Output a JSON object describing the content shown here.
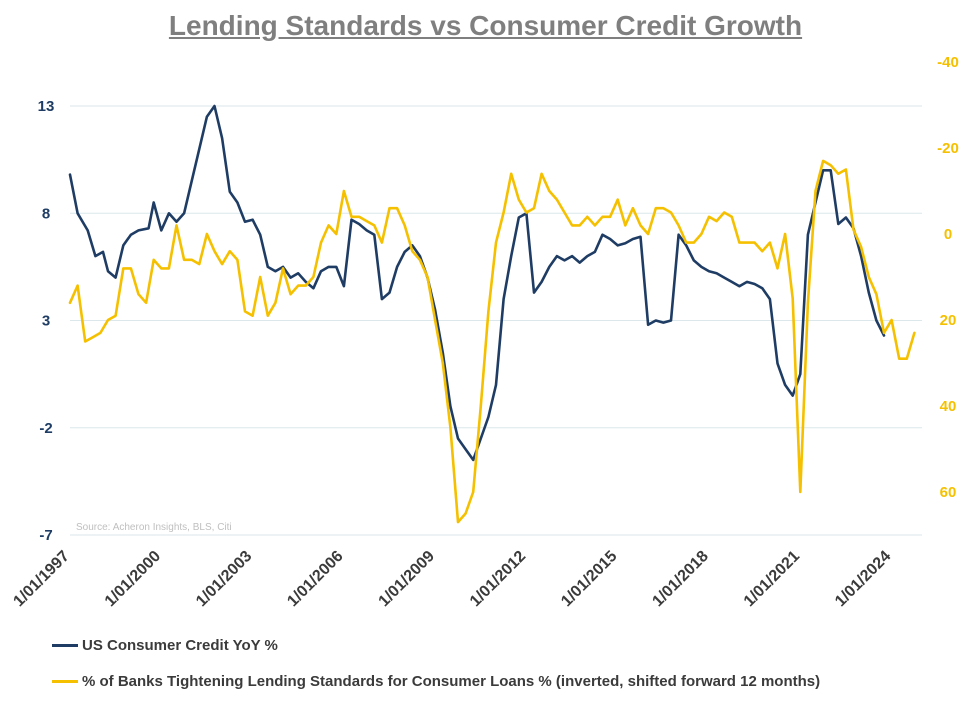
{
  "chart_data": {
    "type": "line",
    "title": "Lending Standards vs Consumer Credit Growth",
    "source": "Source: Acheron Insights, BLS, Citi",
    "grid": true,
    "legend_position": "bottom-left",
    "x_ticks": [
      "1/01/1997",
      "1/01/2000",
      "1/01/2003",
      "1/01/2006",
      "1/01/2009",
      "1/01/2012",
      "1/01/2015",
      "1/01/2018",
      "1/01/2021",
      "1/01/2024"
    ],
    "y_left": {
      "range": [
        -7,
        13
      ],
      "ticks": [
        "13",
        "8",
        "3",
        "-2",
        "-7"
      ],
      "tick_values": [
        13,
        8,
        3,
        -2,
        -7
      ]
    },
    "y_right": {
      "range": [
        -40,
        70
      ],
      "inverted": true,
      "ticks": [
        "-40",
        "-20",
        "0",
        "20",
        "40",
        "60"
      ],
      "tick_values": [
        -40,
        -20,
        0,
        20,
        40,
        60
      ]
    },
    "series": [
      {
        "name": "US Consumer Credit YoY %",
        "axis": "left",
        "color": "#1f3d64",
        "points": [
          [
            "1997-01",
            9.8
          ],
          [
            "1997-04",
            8.0
          ],
          [
            "1997-08",
            7.2
          ],
          [
            "1997-11",
            6.0
          ],
          [
            "1998-02",
            6.2
          ],
          [
            "1998-04",
            5.3
          ],
          [
            "1998-07",
            5.0
          ],
          [
            "1998-10",
            6.5
          ],
          [
            "1999-01",
            7.0
          ],
          [
            "1999-04",
            7.2
          ],
          [
            "1999-08",
            7.3
          ],
          [
            "1999-10",
            8.5
          ],
          [
            "2000-01",
            7.2
          ],
          [
            "2000-04",
            8.0
          ],
          [
            "2000-07",
            7.6
          ],
          [
            "2000-10",
            8.0
          ],
          [
            "2001-01",
            9.5
          ],
          [
            "2001-04",
            11.0
          ],
          [
            "2001-07",
            12.5
          ],
          [
            "2001-10",
            13.0
          ],
          [
            "2002-01",
            11.5
          ],
          [
            "2002-04",
            9.0
          ],
          [
            "2002-07",
            8.5
          ],
          [
            "2002-10",
            7.6
          ],
          [
            "2003-01",
            7.7
          ],
          [
            "2003-04",
            7.0
          ],
          [
            "2003-07",
            5.5
          ],
          [
            "2003-10",
            5.3
          ],
          [
            "2004-01",
            5.5
          ],
          [
            "2004-04",
            5.0
          ],
          [
            "2004-07",
            5.2
          ],
          [
            "2004-10",
            4.8
          ],
          [
            "2005-01",
            4.5
          ],
          [
            "2005-04",
            5.3
          ],
          [
            "2005-07",
            5.5
          ],
          [
            "2005-10",
            5.5
          ],
          [
            "2006-01",
            4.6
          ],
          [
            "2006-04",
            7.7
          ],
          [
            "2006-07",
            7.5
          ],
          [
            "2006-10",
            7.2
          ],
          [
            "2007-01",
            7.0
          ],
          [
            "2007-04",
            4.0
          ],
          [
            "2007-07",
            4.3
          ],
          [
            "2007-10",
            5.5
          ],
          [
            "2008-01",
            6.2
          ],
          [
            "2008-04",
            6.5
          ],
          [
            "2008-07",
            6.0
          ],
          [
            "2008-10",
            5.0
          ],
          [
            "2009-01",
            3.5
          ],
          [
            "2009-04",
            1.5
          ],
          [
            "2009-07",
            -1.0
          ],
          [
            "2009-10",
            -2.5
          ],
          [
            "2010-01",
            -3.0
          ],
          [
            "2010-04",
            -3.5
          ],
          [
            "2010-07",
            -2.5
          ],
          [
            "2010-10",
            -1.5
          ],
          [
            "2011-01",
            0.0
          ],
          [
            "2011-04",
            4.0
          ],
          [
            "2011-07",
            6.0
          ],
          [
            "2011-10",
            7.8
          ],
          [
            "2012-01",
            8.0
          ],
          [
            "2012-04",
            4.3
          ],
          [
            "2012-07",
            4.8
          ],
          [
            "2012-10",
            5.5
          ],
          [
            "2013-01",
            6.0
          ],
          [
            "2013-04",
            5.8
          ],
          [
            "2013-07",
            6.0
          ],
          [
            "2013-10",
            5.7
          ],
          [
            "2014-01",
            6.0
          ],
          [
            "2014-04",
            6.2
          ],
          [
            "2014-07",
            7.0
          ],
          [
            "2014-10",
            6.8
          ],
          [
            "2015-01",
            6.5
          ],
          [
            "2015-04",
            6.6
          ],
          [
            "2015-07",
            6.8
          ],
          [
            "2015-10",
            6.9
          ],
          [
            "2016-01",
            2.8
          ],
          [
            "2016-04",
            3.0
          ],
          [
            "2016-07",
            2.9
          ],
          [
            "2016-10",
            3.0
          ],
          [
            "2017-01",
            7.0
          ],
          [
            "2017-04",
            6.5
          ],
          [
            "2017-07",
            5.8
          ],
          [
            "2017-10",
            5.5
          ],
          [
            "2018-01",
            5.3
          ],
          [
            "2018-04",
            5.2
          ],
          [
            "2018-07",
            5.0
          ],
          [
            "2018-10",
            4.8
          ],
          [
            "2019-01",
            4.6
          ],
          [
            "2019-04",
            4.8
          ],
          [
            "2019-07",
            4.7
          ],
          [
            "2019-10",
            4.5
          ],
          [
            "2020-01",
            4.0
          ],
          [
            "2020-04",
            1.0
          ],
          [
            "2020-07",
            0.0
          ],
          [
            "2020-10",
            -0.5
          ],
          [
            "2021-01",
            0.5
          ],
          [
            "2021-04",
            7.0
          ],
          [
            "2021-07",
            8.5
          ],
          [
            "2021-10",
            10.0
          ],
          [
            "2022-01",
            10.0
          ],
          [
            "2022-04",
            7.5
          ],
          [
            "2022-07",
            7.8
          ],
          [
            "2022-10",
            7.3
          ],
          [
            "2023-01",
            6.0
          ],
          [
            "2023-04",
            4.3
          ],
          [
            "2023-07",
            3.0
          ],
          [
            "2023-10",
            2.3
          ]
        ]
      },
      {
        "name": "% of Banks Tightening Lending Standards for Consumer Loans % (inverted, shifted forward 12 months)",
        "axis": "right",
        "color": "#f5c000",
        "points": [
          [
            "1997-01",
            16
          ],
          [
            "1997-04",
            12
          ],
          [
            "1997-07",
            25
          ],
          [
            "1997-10",
            24
          ],
          [
            "1998-01",
            23
          ],
          [
            "1998-04",
            20
          ],
          [
            "1998-07",
            19
          ],
          [
            "1998-10",
            8
          ],
          [
            "1999-01",
            8
          ],
          [
            "1999-04",
            14
          ],
          [
            "1999-07",
            16
          ],
          [
            "1999-10",
            6
          ],
          [
            "2000-01",
            8
          ],
          [
            "2000-04",
            8
          ],
          [
            "2000-07",
            -2
          ],
          [
            "2000-10",
            6
          ],
          [
            "2001-01",
            6
          ],
          [
            "2001-04",
            7
          ],
          [
            "2001-07",
            0
          ],
          [
            "2001-10",
            4
          ],
          [
            "2002-01",
            7
          ],
          [
            "2002-04",
            4
          ],
          [
            "2002-07",
            6
          ],
          [
            "2002-10",
            18
          ],
          [
            "2003-01",
            19
          ],
          [
            "2003-04",
            10
          ],
          [
            "2003-07",
            19
          ],
          [
            "2003-10",
            16
          ],
          [
            "2004-01",
            8
          ],
          [
            "2004-04",
            14
          ],
          [
            "2004-07",
            12
          ],
          [
            "2004-10",
            12
          ],
          [
            "2005-01",
            10
          ],
          [
            "2005-04",
            2
          ],
          [
            "2005-07",
            -2
          ],
          [
            "2005-10",
            0
          ],
          [
            "2006-01",
            -10
          ],
          [
            "2006-04",
            -4
          ],
          [
            "2006-07",
            -4
          ],
          [
            "2006-10",
            -3
          ],
          [
            "2007-01",
            -2
          ],
          [
            "2007-04",
            2
          ],
          [
            "2007-07",
            -6
          ],
          [
            "2007-10",
            -6
          ],
          [
            "2008-01",
            -2
          ],
          [
            "2008-04",
            4
          ],
          [
            "2008-07",
            6
          ],
          [
            "2008-10",
            10
          ],
          [
            "2009-01",
            20
          ],
          [
            "2009-04",
            30
          ],
          [
            "2009-07",
            45
          ],
          [
            "2009-10",
            67
          ],
          [
            "2010-01",
            65
          ],
          [
            "2010-04",
            60
          ],
          [
            "2010-07",
            40
          ],
          [
            "2010-10",
            18
          ],
          [
            "2011-01",
            2
          ],
          [
            "2011-04",
            -5
          ],
          [
            "2011-07",
            -14
          ],
          [
            "2011-10",
            -8
          ],
          [
            "2012-01",
            -5
          ],
          [
            "2012-04",
            -6
          ],
          [
            "2012-07",
            -14
          ],
          [
            "2012-10",
            -10
          ],
          [
            "2013-01",
            -8
          ],
          [
            "2013-04",
            -5
          ],
          [
            "2013-07",
            -2
          ],
          [
            "2013-10",
            -2
          ],
          [
            "2014-01",
            -4
          ],
          [
            "2014-04",
            -2
          ],
          [
            "2014-07",
            -4
          ],
          [
            "2014-10",
            -4
          ],
          [
            "2015-01",
            -8
          ],
          [
            "2015-04",
            -2
          ],
          [
            "2015-07",
            -6
          ],
          [
            "2015-10",
            -2
          ],
          [
            "2016-01",
            0
          ],
          [
            "2016-04",
            -6
          ],
          [
            "2016-07",
            -6
          ],
          [
            "2016-10",
            -5
          ],
          [
            "2017-01",
            -2
          ],
          [
            "2017-04",
            2
          ],
          [
            "2017-07",
            2
          ],
          [
            "2017-10",
            0
          ],
          [
            "2018-01",
            -4
          ],
          [
            "2018-04",
            -3
          ],
          [
            "2018-07",
            -5
          ],
          [
            "2018-10",
            -4
          ],
          [
            "2019-01",
            2
          ],
          [
            "2019-04",
            2
          ],
          [
            "2019-07",
            2
          ],
          [
            "2019-10",
            4
          ],
          [
            "2020-01",
            2
          ],
          [
            "2020-04",
            8
          ],
          [
            "2020-07",
            0
          ],
          [
            "2020-10",
            15
          ],
          [
            "2021-01",
            60
          ],
          [
            "2021-04",
            16
          ],
          [
            "2021-07",
            -10
          ],
          [
            "2021-10",
            -17
          ],
          [
            "2022-01",
            -16
          ],
          [
            "2022-04",
            -14
          ],
          [
            "2022-07",
            -15
          ],
          [
            "2022-10",
            -1
          ],
          [
            "2023-01",
            3
          ],
          [
            "2023-04",
            10
          ],
          [
            "2023-07",
            14
          ],
          [
            "2023-10",
            23
          ],
          [
            "2024-01",
            20
          ],
          [
            "2024-04",
            29
          ],
          [
            "2024-07",
            29
          ],
          [
            "2024-10",
            23
          ]
        ]
      }
    ]
  }
}
